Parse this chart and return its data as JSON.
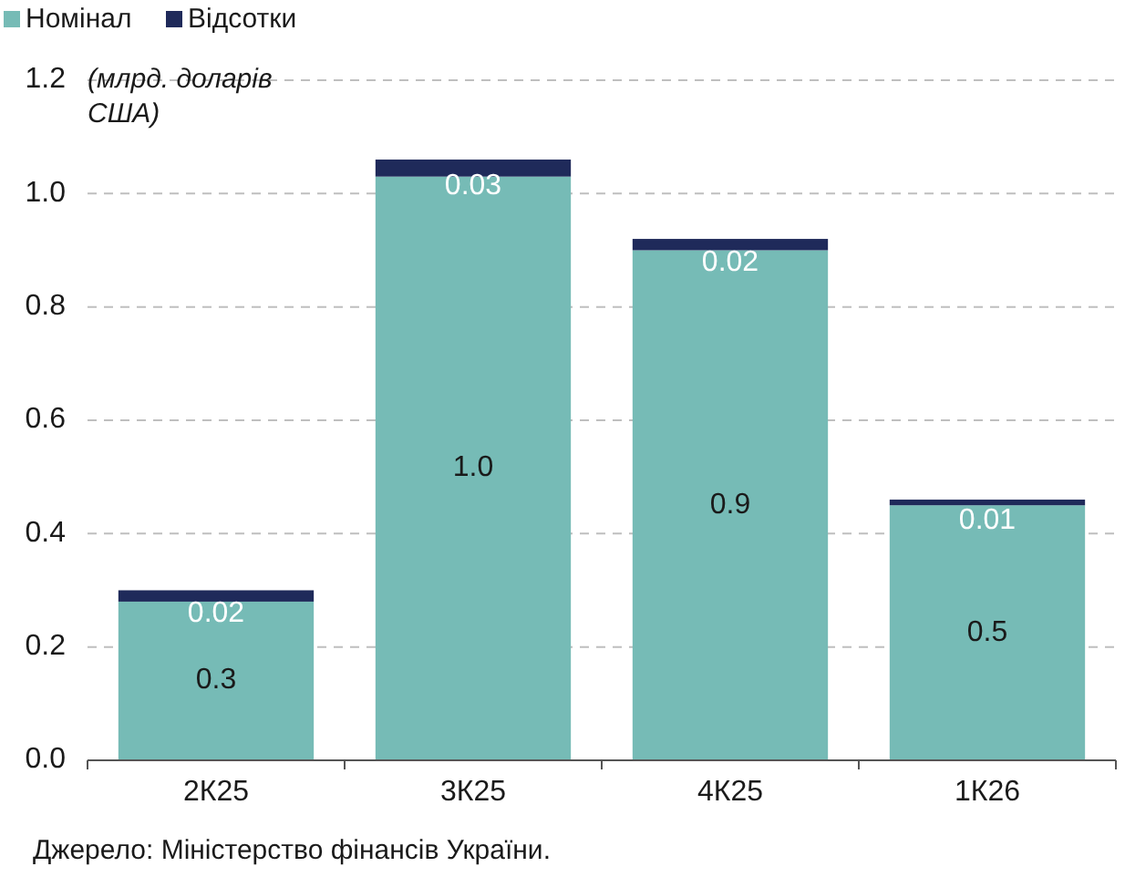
{
  "chart_data": {
    "type": "bar",
    "stacked": true,
    "ylabel": "(млрд. доларів США)",
    "categories": [
      "2К25",
      "3К25",
      "4К25",
      "1К26"
    ],
    "series": [
      {
        "name": "Номінал",
        "color": "#76bbb6",
        "values": [
          0.28,
          1.03,
          0.9,
          0.45
        ],
        "value_labels": [
          "0.3",
          "1.0",
          "0.9",
          "0.5"
        ]
      },
      {
        "name": "Відсотки",
        "color": "#1f2a5a",
        "values": [
          0.02,
          0.03,
          0.02,
          0.01
        ],
        "value_labels": [
          "0.02",
          "0.03",
          "0.02",
          "0.01"
        ]
      }
    ],
    "ylim": [
      0,
      1.2
    ],
    "yticks": [
      {
        "value": 0,
        "label": "0.0"
      },
      0.2,
      0.4,
      0.6,
      0.8,
      {
        "value": 1,
        "label": "1.0"
      },
      1.2
    ],
    "grid": "y",
    "legend": "top left",
    "annotations": [
      "Джерело: Міністерство фінансів України."
    ]
  }
}
